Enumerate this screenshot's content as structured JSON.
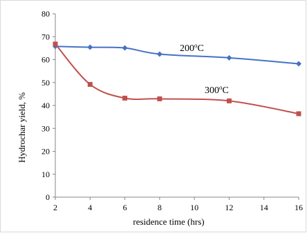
{
  "chart_data": {
    "type": "line",
    "xlabel": "residence time (hrs)",
    "ylabel": "Hydrochar yield, %",
    "xlim": [
      2,
      16
    ],
    "ylim": [
      0,
      80
    ],
    "xticks": [
      2,
      4,
      6,
      8,
      10,
      12,
      14,
      16
    ],
    "yticks": [
      0,
      10,
      20,
      30,
      40,
      50,
      60,
      70,
      80
    ],
    "grid": false,
    "series": [
      {
        "name": "200",
        "unit_sup": "o",
        "unit": "C",
        "color": "#4472c4",
        "marker": "diamond",
        "x": [
          2,
          4,
          6,
          8,
          12,
          16
        ],
        "y": [
          65.8,
          65.4,
          65.1,
          62.4,
          60.8,
          58.2
        ]
      },
      {
        "name": "300",
        "unit_sup": "o",
        "unit": "C",
        "color": "#c0504d",
        "marker": "square",
        "x": [
          2,
          4,
          6,
          8,
          12,
          16
        ],
        "y": [
          66.8,
          49.2,
          43.2,
          42.9,
          42.0,
          36.4
        ]
      }
    ]
  }
}
